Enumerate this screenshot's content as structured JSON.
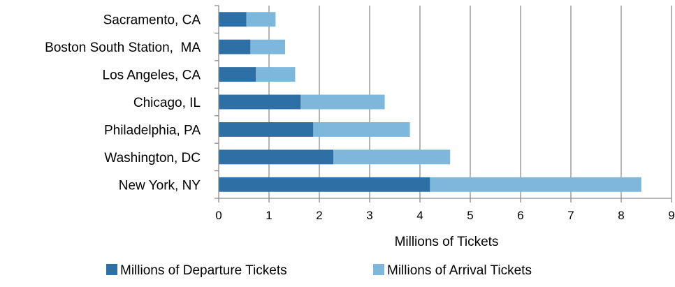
{
  "chart_data": {
    "type": "bar",
    "orientation": "horizontal",
    "stacked": true,
    "categories": [
      "New York, NY",
      "Washington, DC",
      "Philadelphia, PA",
      "Chicago, IL",
      "Los Angeles, CA",
      "Boston South Station,  MA",
      "Sacramento, CA"
    ],
    "series": [
      {
        "name": "Millions of Departure Tickets",
        "color": "#2e6fa6",
        "values": [
          4.2,
          2.28,
          1.88,
          1.63,
          0.74,
          0.63,
          0.55
        ]
      },
      {
        "name": "Millions of Arrival Tickets",
        "color": "#7db8dc",
        "values": [
          4.2,
          2.32,
          1.92,
          1.67,
          0.78,
          0.69,
          0.58
        ]
      }
    ],
    "xlabel": "Millions of Tickets",
    "ylabel": "",
    "xlim": [
      0,
      9
    ],
    "xticks": [
      "0",
      "1",
      "2",
      "3",
      "4",
      "5",
      "6",
      "7",
      "8",
      "9"
    ],
    "grid": "vertical major gridlines",
    "legend": "bottom"
  }
}
